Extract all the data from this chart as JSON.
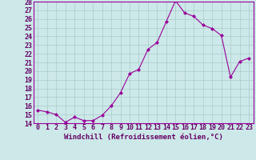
{
  "x": [
    0,
    1,
    2,
    3,
    4,
    5,
    6,
    7,
    8,
    9,
    10,
    11,
    12,
    13,
    14,
    15,
    16,
    17,
    18,
    19,
    20,
    21,
    22,
    23
  ],
  "y": [
    15.5,
    15.3,
    15.0,
    14.1,
    14.7,
    14.3,
    14.3,
    14.9,
    16.0,
    17.5,
    19.7,
    20.2,
    22.5,
    23.3,
    25.7,
    28.1,
    26.7,
    26.3,
    25.3,
    24.9,
    24.1,
    19.3,
    21.1,
    21.5
  ],
  "line_color": "#990099",
  "marker": "D",
  "marker_size": 2.0,
  "bg_color": "#cce8e8",
  "grid_color": "#aacccc",
  "xlabel": "Windchill (Refroidissement éolien,°C)",
  "xlim": [
    -0.5,
    23.5
  ],
  "ylim": [
    14,
    28
  ],
  "ytick_min": 14,
  "ytick_max": 28,
  "xtick_labels": [
    "0",
    "1",
    "2",
    "3",
    "4",
    "5",
    "6",
    "7",
    "8",
    "9",
    "10",
    "11",
    "12",
    "13",
    "14",
    "15",
    "16",
    "17",
    "18",
    "19",
    "20",
    "21",
    "22",
    "23"
  ],
  "label_color": "#660066",
  "xlabel_fontsize": 6.5,
  "tick_fontsize": 6.0
}
